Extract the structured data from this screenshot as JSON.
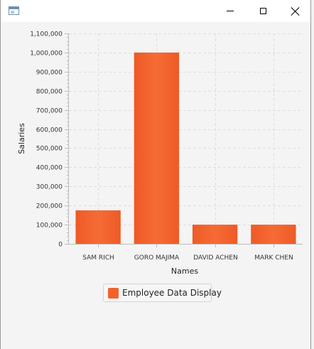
{
  "window": {
    "title": "",
    "icons": {
      "app": "window-icon",
      "minimize": "minimize-icon",
      "maximize": "maximize-icon",
      "close": "close-icon"
    }
  },
  "colors": {
    "bar": "#f3622d",
    "grid": "#dedede",
    "axis": "#bcbcbc"
  },
  "chart_data": {
    "type": "bar",
    "categories": [
      "SAM RICH",
      "GORO MAJIMA",
      "DAVID ACHEN",
      "MARK CHEN"
    ],
    "series": [
      {
        "name": "Employee Data Display",
        "values": [
          175000,
          1000000,
          100000,
          100000
        ]
      }
    ],
    "title": "",
    "xlabel": "Names",
    "ylabel": "Salaries",
    "ylim": [
      0,
      1100000
    ],
    "yticks": [
      0,
      100000,
      200000,
      300000,
      400000,
      500000,
      600000,
      700000,
      800000,
      900000,
      1000000,
      1100000
    ],
    "ytick_labels": [
      "0",
      "100,000",
      "200,000",
      "300,000",
      "400,000",
      "500,000",
      "600,000",
      "700,000",
      "800,000",
      "900,000",
      "1,000,000",
      "1,100,000"
    ],
    "grid": true,
    "legend_position": "bottom"
  }
}
